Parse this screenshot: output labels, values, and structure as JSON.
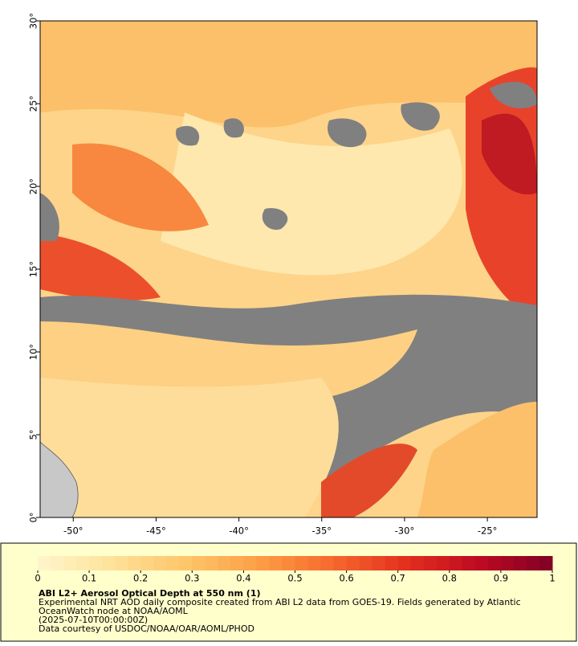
{
  "map": {
    "xlim": [
      -52,
      -22
    ],
    "ylim": [
      0,
      30
    ],
    "xticks": [
      {
        "value": -50,
        "label": "-50°"
      },
      {
        "value": -45,
        "label": "-45°"
      },
      {
        "value": -40,
        "label": "-40°"
      },
      {
        "value": -35,
        "label": "-35°"
      },
      {
        "value": -30,
        "label": "-30°"
      },
      {
        "value": -25,
        "label": "-25°"
      }
    ],
    "yticks": [
      {
        "value": 0,
        "label": "0°"
      },
      {
        "value": 5,
        "label": "5°"
      },
      {
        "value": 10,
        "label": "10°"
      },
      {
        "value": 15,
        "label": "15°"
      },
      {
        "value": 20,
        "label": "20°"
      },
      {
        "value": 25,
        "label": "25°"
      },
      {
        "value": 30,
        "label": "30°"
      }
    ]
  },
  "colorbar": {
    "range": [
      0,
      1
    ],
    "ticks": [
      0,
      0.1,
      0.2,
      0.3,
      0.4,
      0.5,
      0.6,
      0.7,
      0.8,
      0.9,
      1
    ],
    "colors": [
      "#fff6cc",
      "#fee29a",
      "#fec66a",
      "#fd9e45",
      "#f66a2e",
      "#e3301e",
      "#bd0a22",
      "#800026"
    ]
  },
  "caption": {
    "title": "ABI L2+ Aerosol Optical Depth at 550 nm (1)",
    "lines": [
      "Experimental NRT AOD daily composite created from ABI L2 data from GOES-19. Fields generated by Atlantic",
      "OceanWatch node at NOAA/AOML",
      "(2025-07-10T00:00:00Z)",
      "Data courtesy of USDOC/NOAA/OAR/AOML/PHOD"
    ]
  }
}
